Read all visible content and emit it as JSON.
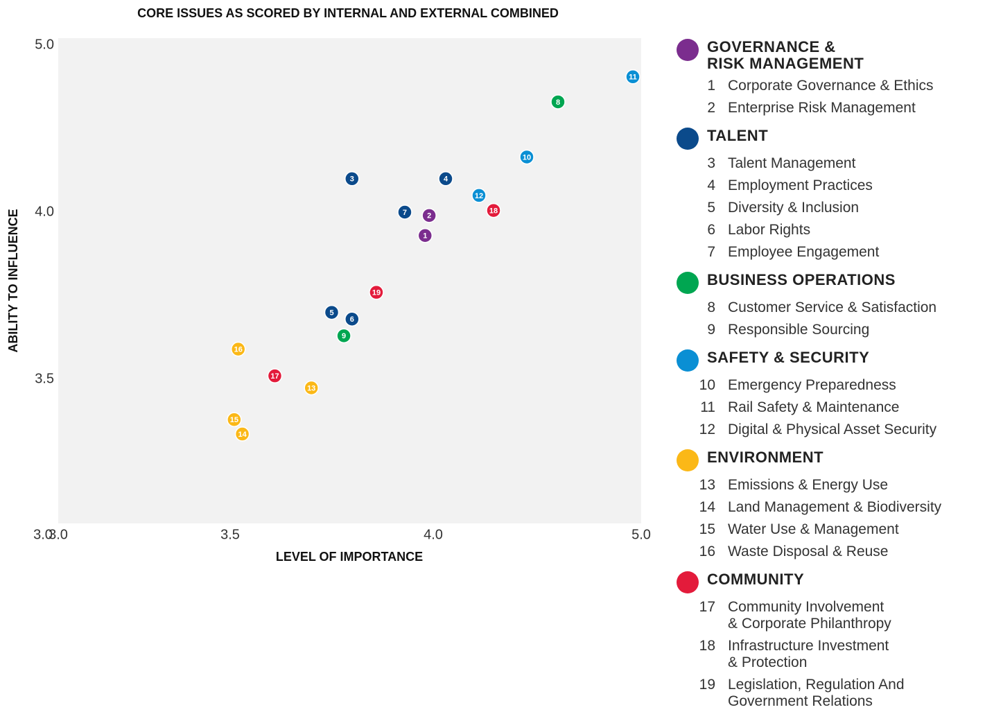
{
  "chart_data": {
    "type": "scatter",
    "title": "CORE ISSUES AS SCORED BY INTERNAL AND EXTERNAL COMBINED",
    "x_label": "LEVEL OF IMPORTANCE",
    "y_label": "ABILITY TO INFLUENCE",
    "xlim": [
      3,
      5
    ],
    "ylim": [
      3,
      5
    ],
    "xticks": [
      {
        "value": 3,
        "label": "3.0"
      },
      {
        "value": 3.5,
        "label": "3.5"
      },
      {
        "value": 4,
        "label": "4.0"
      },
      {
        "value": 5,
        "label": "5.0"
      }
    ],
    "yticks": [
      {
        "value": 3,
        "label": "3.0"
      },
      {
        "value": 3.5,
        "label": "3.5"
      },
      {
        "value": 4,
        "label": "4.0"
      },
      {
        "value": 5,
        "label": "5.0"
      }
    ],
    "series": [
      {
        "name": "GOVERNANCE &\nRISK MANAGEMENT",
        "color": "#7b2d8e",
        "labels": [
          "1",
          "2"
        ],
        "items": [
          "Corporate Governance & Ethics",
          "Enterprise Risk Management"
        ],
        "x": [
          3.98,
          3.99
        ],
        "values": [
          3.93,
          3.99
        ]
      },
      {
        "name": "TALENT",
        "color": "#0b4a8b",
        "labels": [
          "3",
          "4",
          "5",
          "6",
          "7"
        ],
        "items": [
          "Talent Management",
          "Employment Practices",
          "Diversity & Inclusion",
          "Labor Rights",
          "Employee Engagement"
        ],
        "x": [
          3.8,
          4.06,
          3.75,
          3.8,
          3.93
        ],
        "values": [
          4.2,
          4.2,
          3.7,
          3.68,
          4.0
        ]
      },
      {
        "name": "BUSINESS OPERATIONS",
        "color": "#00a651",
        "labels": [
          "8",
          "9"
        ],
        "items": [
          "Customer Service & Satisfaction",
          "Responsible Sourcing"
        ],
        "x": [
          4.6,
          3.78
        ],
        "values": [
          4.66,
          3.63
        ]
      },
      {
        "name": "SAFETY & SECURITY",
        "color": "#0a8fd4",
        "labels": [
          "10",
          "11",
          "12"
        ],
        "items": [
          "Emergency Preparedness",
          "Rail Safety & Maintenance",
          "Digital & Physical Asset Security"
        ],
        "x": [
          4.45,
          4.96,
          4.22
        ],
        "values": [
          4.33,
          4.81,
          4.1
        ]
      },
      {
        "name": "ENVIRONMENT",
        "color": "#fbb817",
        "labels": [
          "13",
          "14",
          "15",
          "16"
        ],
        "items": [
          "Emissions & Energy Use",
          "Land Management & Biodiversity",
          "Water Use & Management",
          "Waste Disposal & Reuse"
        ],
        "x": [
          3.7,
          3.53,
          3.51,
          3.52
        ],
        "values": [
          3.47,
          3.31,
          3.36,
          3.59
        ]
      },
      {
        "name": "COMMUNITY",
        "color": "#e31b3b",
        "labels": [
          "17",
          "18",
          "19"
        ],
        "items": [
          "Community Involvement\n& Corporate Philanthropy",
          "Infrastructure Investment\n& Protection",
          "Legislation, Regulation And\nGovernment Relations"
        ],
        "x": [
          3.61,
          4.29,
          3.86
        ],
        "values": [
          3.51,
          4.01,
          3.76
        ]
      }
    ]
  }
}
